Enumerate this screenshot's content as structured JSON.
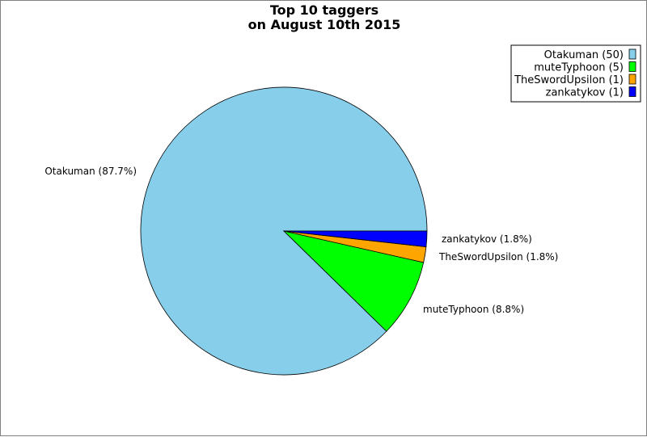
{
  "chart_data": {
    "type": "pie",
    "title": "Top 10 taggers",
    "subtitle": "on August 10th 2015",
    "slices": [
      {
        "name": "Otakuman",
        "value": 50,
        "percent_label": "87.7%",
        "color": "#87ceeb",
        "legend_label": "Otakuman (50)",
        "slice_label": "Otakuman (87.7%)"
      },
      {
        "name": "muteTyphoon",
        "value": 5,
        "percent_label": "8.8%",
        "color": "#00ff00",
        "legend_label": "muteTyphoon (5)",
        "slice_label": "muteTyphoon (8.8%)"
      },
      {
        "name": "TheSwordUpsilon",
        "value": 1,
        "percent_label": "1.8%",
        "color": "#ffa500",
        "legend_label": "TheSwordUpsilon (1)",
        "slice_label": "TheSwordUpsilon (1.8%)"
      },
      {
        "name": "zankatykov",
        "value": 1,
        "percent_label": "1.8%",
        "color": "#0000ff",
        "legend_label": "zankatykov (1)",
        "slice_label": "zankatykov (1.8%)"
      }
    ],
    "legend_position": "top-right"
  }
}
